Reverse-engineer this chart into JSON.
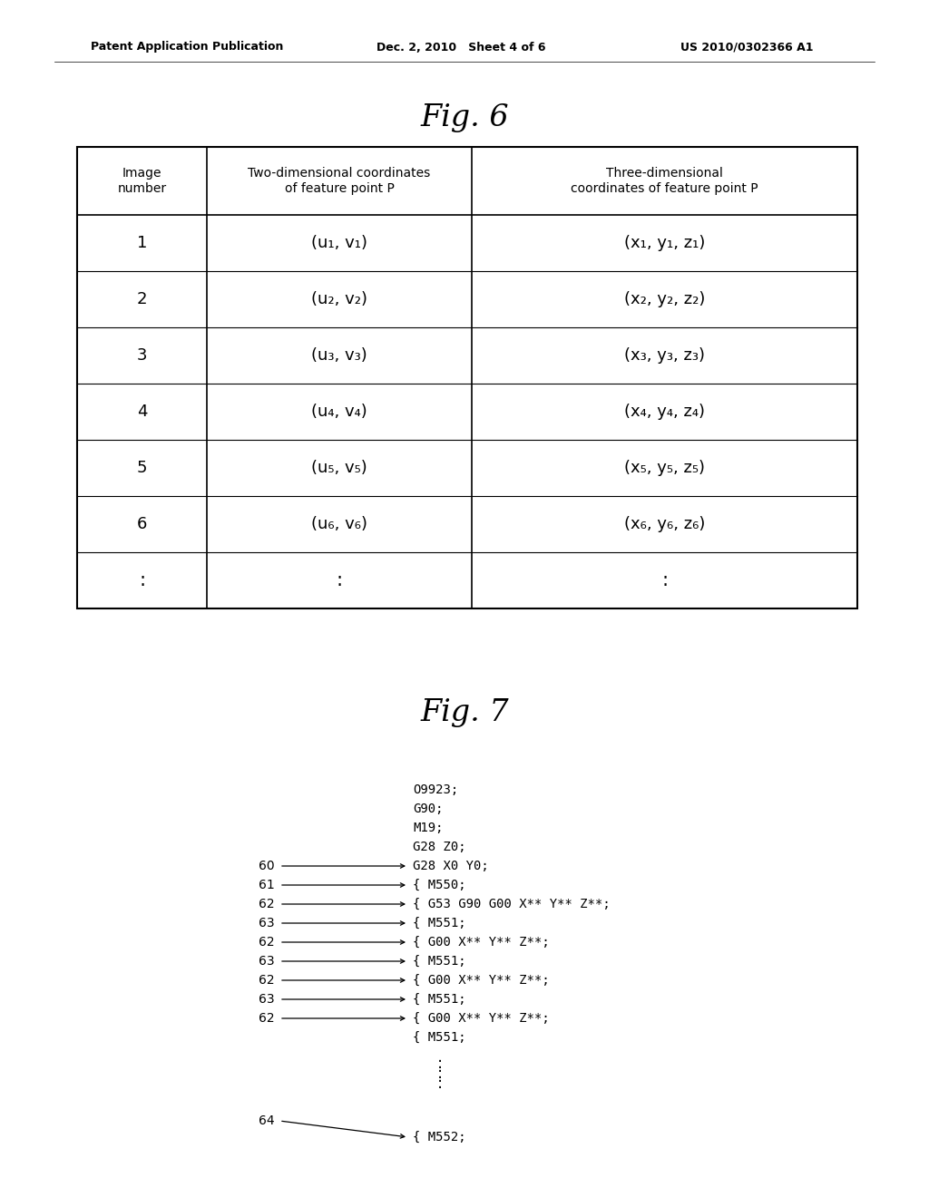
{
  "background_color": "#ffffff",
  "header_left": "Patent Application Publication",
  "header_mid": "Dec. 2, 2010   Sheet 4 of 6",
  "header_right": "US 2010/0302366 A1",
  "fig6_title": "Fig. 6",
  "fig7_title": "Fig. 7",
  "table": {
    "col_headers": [
      "Image\nnumber",
      "Two-dimensional coordinates\nof feature point P",
      "Three-dimensional\ncoordinates of feature point P"
    ],
    "rows": [
      [
        "1",
        "(u₁, v₁)",
        "(x₁, y₁, z₁)"
      ],
      [
        "2",
        "(u₂, v₂)",
        "(x₂, y₂, z₂)"
      ],
      [
        "3",
        "(u₃, v₃)",
        "(x₃, y₃, z₃)"
      ],
      [
        "4",
        "(u₄, v₄)",
        "(x₄, y₄, z₄)"
      ],
      [
        "5",
        "(u₅, v₅)",
        "(x₅, y₅, z₅)"
      ],
      [
        "6",
        "(u₆, v₆)",
        "(x₆, y₆, z₆)"
      ],
      [
        ":",
        ":",
        ":"
      ]
    ]
  },
  "fig7": {
    "unlabeled_lines": [
      "O9923;",
      "G90;",
      "M19;",
      "G28 Z0;"
    ],
    "labeled_lines": [
      {
        "label": "60",
        "text": "G28 X0 Y0;",
        "indent": 0
      },
      {
        "label": "61",
        "text": "{ M550;",
        "indent": 1
      },
      {
        "label": "62",
        "text": "{ G53 G90 G00 X** Y** Z**;",
        "indent": 1
      },
      {
        "label": "63",
        "text": "{ M551;",
        "indent": 1
      },
      {
        "label": "62",
        "text": "{ G00 X** Y** Z**;",
        "indent": 1
      },
      {
        "label": "63",
        "text": "{ M551;",
        "indent": 1
      },
      {
        "label": "62",
        "text": "{ G00 X** Y** Z**;",
        "indent": 1
      },
      {
        "label": "63",
        "text": "{ M551;",
        "indent": 1
      },
      {
        "label": "62",
        "text": "{ G00 X** Y** Z**;",
        "indent": 1
      },
      {
        "label": null,
        "text": "{ M551;",
        "indent": 1
      }
    ],
    "label_64_text": "{ M552;"
  }
}
